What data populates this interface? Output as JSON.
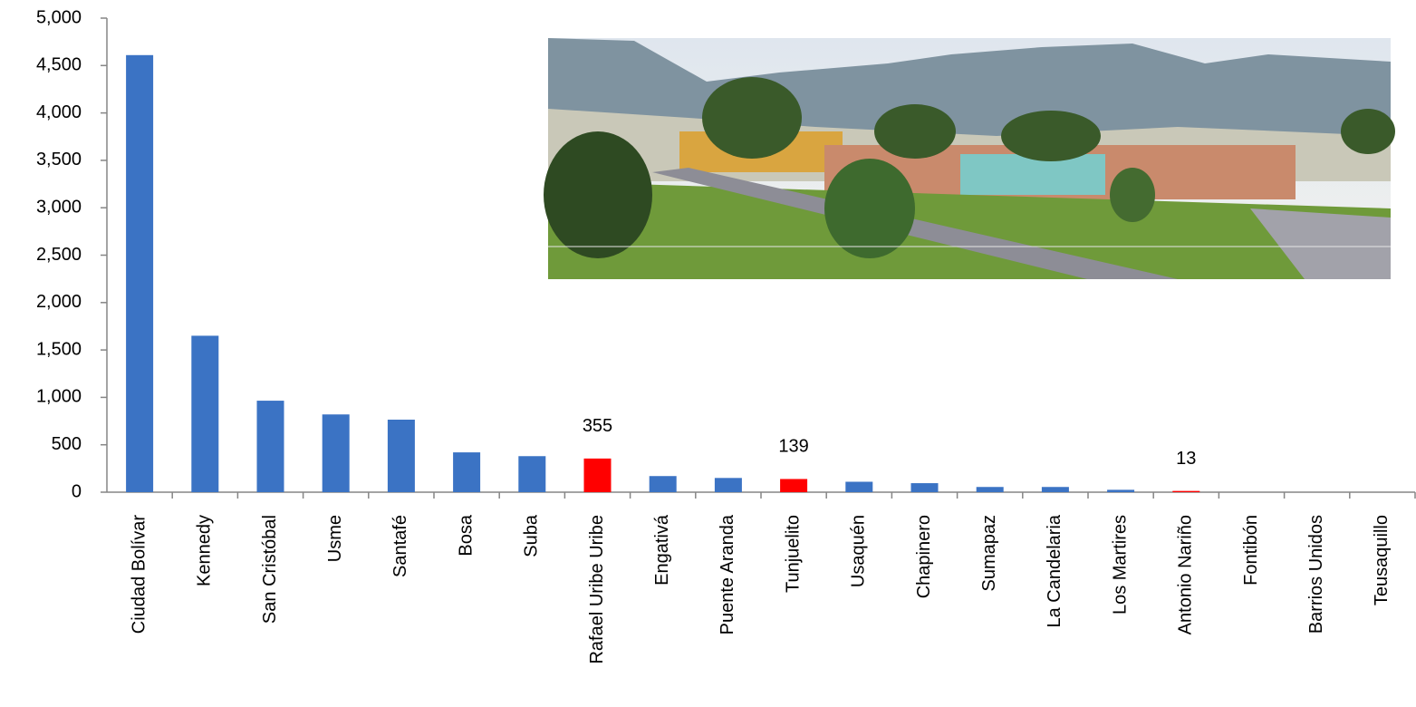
{
  "chart_data": {
    "type": "bar",
    "categories": [
      "Ciudad Bolívar",
      "Kennedy",
      "San Cristóbal",
      "Usme",
      "Santafé",
      "Bosa",
      "Suba",
      "Rafael Uribe Uribe",
      "Engativá",
      "Puente Aranda",
      "Tunjuelito",
      "Usaquén",
      "Chapinero",
      "Sumapaz",
      "La Candelaria",
      "Los Martires",
      "Antonio Nariño",
      "Fontibón",
      "Barrios Unidos",
      "Teusaquillo"
    ],
    "values": [
      4610,
      1650,
      965,
      820,
      765,
      420,
      380,
      355,
      170,
      150,
      139,
      110,
      95,
      55,
      55,
      25,
      13,
      0,
      0,
      0
    ],
    "colors": [
      "#3b73c4",
      "#3b73c4",
      "#3b73c4",
      "#3b73c4",
      "#3b73c4",
      "#3b73c4",
      "#3b73c4",
      "#ff0000",
      "#3b73c4",
      "#3b73c4",
      "#ff0000",
      "#3b73c4",
      "#3b73c4",
      "#3b73c4",
      "#3b73c4",
      "#3b73c4",
      "#ff0000",
      "#3b73c4",
      "#3b73c4",
      "#3b73c4"
    ],
    "show_value_label": [
      false,
      false,
      false,
      false,
      false,
      false,
      false,
      true,
      false,
      false,
      true,
      false,
      false,
      false,
      false,
      false,
      true,
      false,
      false,
      false
    ],
    "ylim": [
      0,
      5000
    ],
    "yticks": [
      0,
      500,
      {
        "value": 1000,
        "label": "1,000"
      },
      {
        "value": 1500,
        "label": "1,500"
      },
      {
        "value": 2000,
        "label": "2,000"
      },
      {
        "value": 2500,
        "label": "2,500"
      },
      {
        "value": 3000,
        "label": "3,000"
      },
      {
        "value": 3500,
        "label": "3,500"
      },
      {
        "value": 4000,
        "label": "4,000"
      },
      {
        "value": 4500,
        "label": "4,500"
      },
      {
        "value": 5000,
        "label": "5,000"
      }
    ],
    "grid": false
  }
}
